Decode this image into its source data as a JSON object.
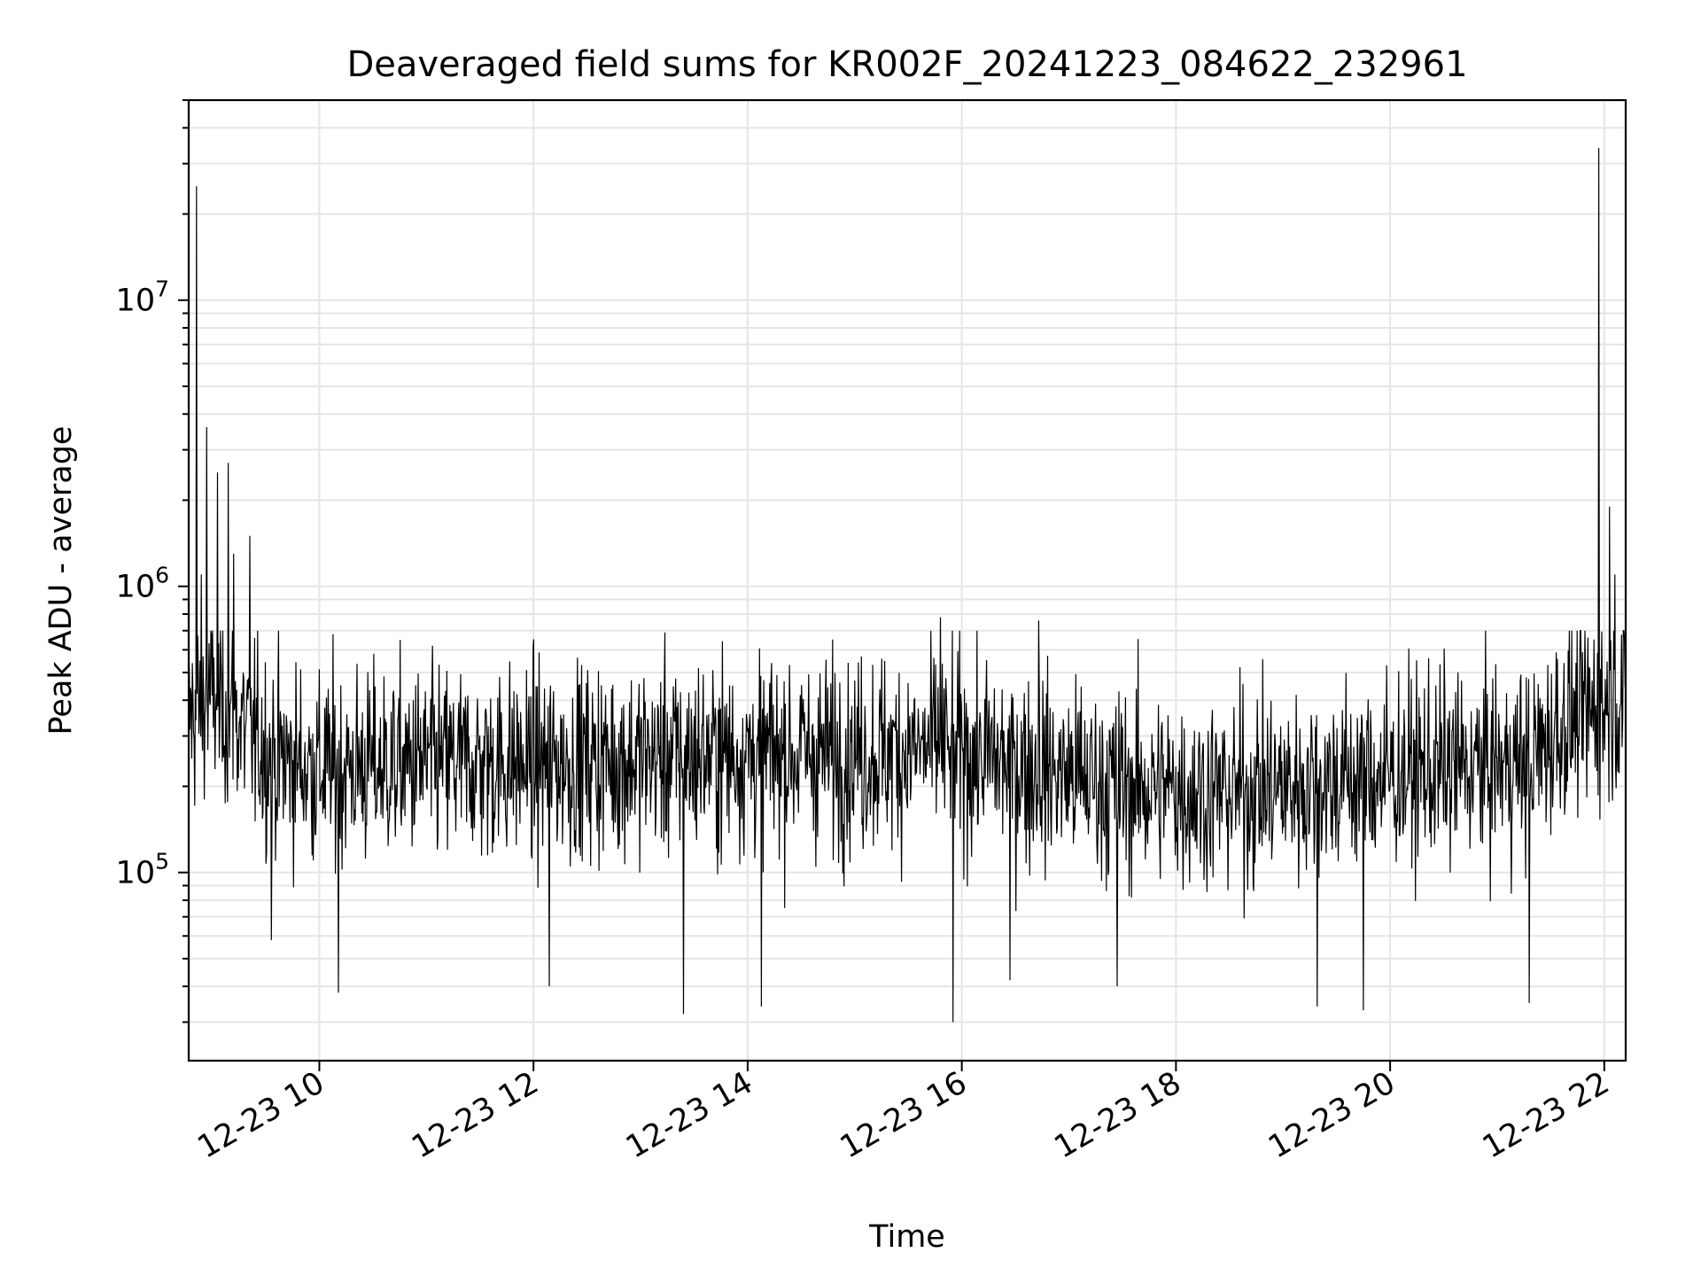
{
  "chart_data": {
    "type": "line",
    "title": "Deaveraged field sums for KR002F_20241223_084622_232961",
    "xlabel": "Time",
    "ylabel": "Peak ADU - average",
    "yscale": "log",
    "ylim": [
      22000,
      50000000
    ],
    "xlim_hours": [
      8.78,
      22.2
    ],
    "grid": true,
    "line_color": "#000000",
    "grid_color": "#e5e5e5",
    "x_ticks": [
      {
        "value": 10,
        "label": "12-23 10"
      },
      {
        "value": 12,
        "label": "12-23 12"
      },
      {
        "value": 14,
        "label": "12-23 14"
      },
      {
        "value": 16,
        "label": "12-23 16"
      },
      {
        "value": 18,
        "label": "12-23 18"
      },
      {
        "value": 20,
        "label": "12-23 20"
      },
      {
        "value": 22,
        "label": "12-23 22"
      }
    ],
    "y_ticks": [
      {
        "value": 100000,
        "base": "10",
        "exp": "5"
      },
      {
        "value": 1000000,
        "base": "10",
        "exp": "6"
      },
      {
        "value": 10000000,
        "base": "10",
        "exp": "7"
      }
    ],
    "series": [
      {
        "name": "Peak ADU - average",
        "sample_count": 2400,
        "baseline": [
          [
            8.78,
            350000
          ],
          [
            9.0,
            420000
          ],
          [
            9.3,
            320000
          ],
          [
            9.6,
            250000
          ],
          [
            10.0,
            230000
          ],
          [
            11.0,
            240000
          ],
          [
            12.0,
            240000
          ],
          [
            13.0,
            250000
          ],
          [
            14.0,
            260000
          ],
          [
            15.0,
            260000
          ],
          [
            15.8,
            270000
          ],
          [
            16.5,
            240000
          ],
          [
            17.5,
            200000
          ],
          [
            18.5,
            190000
          ],
          [
            19.5,
            210000
          ],
          [
            20.5,
            230000
          ],
          [
            21.3,
            240000
          ],
          [
            21.6,
            330000
          ],
          [
            22.2,
            420000
          ]
        ],
        "spikes": [
          [
            8.85,
            25000000
          ],
          [
            8.9,
            1100000
          ],
          [
            8.95,
            3600000
          ],
          [
            9.05,
            2500000
          ],
          [
            9.15,
            2700000
          ],
          [
            9.2,
            1300000
          ],
          [
            9.35,
            1500000
          ],
          [
            15.8,
            780000
          ],
          [
            16.72,
            760000
          ],
          [
            21.95,
            34000000
          ],
          [
            22.05,
            1900000
          ],
          [
            22.1,
            1100000
          ]
        ],
        "dips": [
          [
            9.55,
            58000
          ],
          [
            10.18,
            38000
          ],
          [
            12.15,
            40000
          ],
          [
            13.4,
            32000
          ],
          [
            14.13,
            34000
          ],
          [
            15.92,
            30000
          ],
          [
            16.45,
            42000
          ],
          [
            17.45,
            40000
          ],
          [
            19.32,
            34000
          ],
          [
            19.75,
            33000
          ],
          [
            21.3,
            35000
          ]
        ]
      }
    ]
  }
}
